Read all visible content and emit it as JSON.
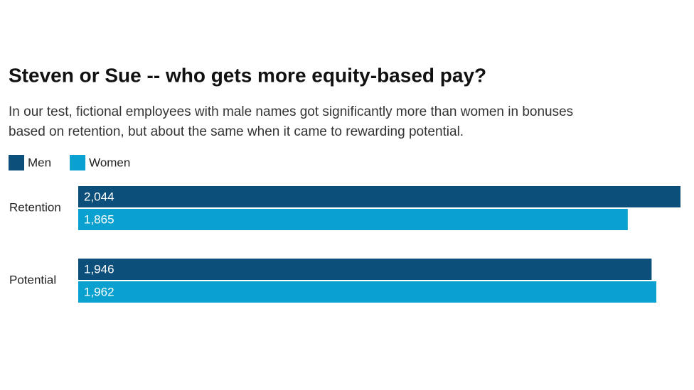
{
  "chart_data": {
    "type": "bar",
    "orientation": "horizontal",
    "title": "Steven or Sue -- who gets more equity-based pay?",
    "subtitle": [
      "In our test, fictional employees with male names got significantly more than women in bonuses",
      "based on retention, but about the same when it came to rewarding potential."
    ],
    "categories": [
      "Retention",
      "Potential"
    ],
    "series": [
      {
        "name": "Men",
        "color": "#0d4f7b",
        "values": [
          2044,
          1946
        ],
        "value_labels": [
          "2,044",
          "1,946"
        ]
      },
      {
        "name": "Women",
        "color": "#0aa0cf",
        "values": [
          1865,
          1962
        ],
        "value_labels": [
          "1,865",
          "1,962"
        ]
      }
    ]
  }
}
